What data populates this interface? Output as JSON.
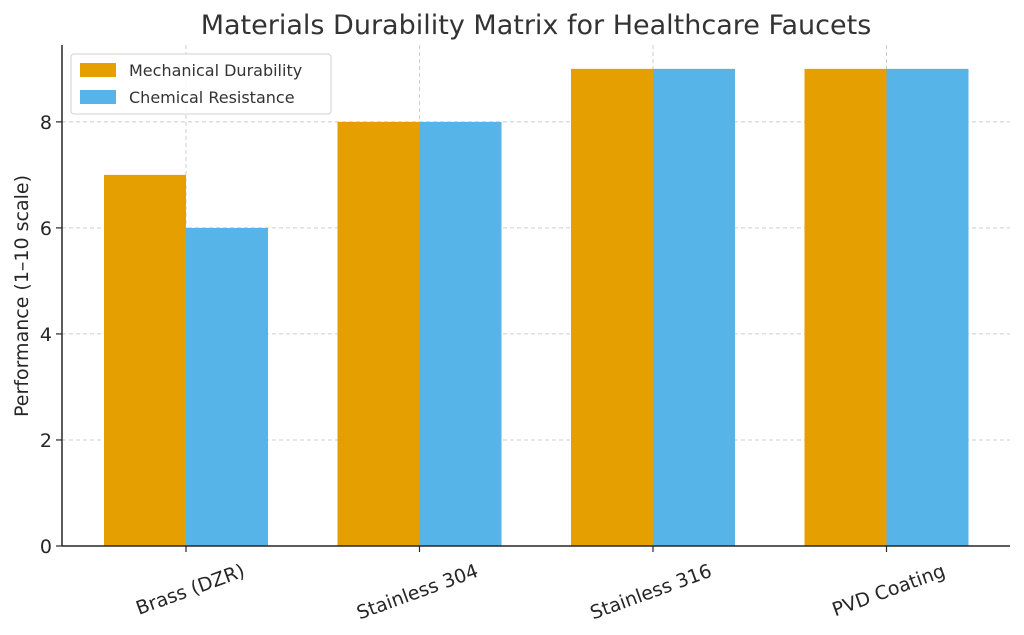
{
  "chart_data": {
    "type": "bar",
    "title": "Materials Durability Matrix for Healthcare Faucets",
    "xlabel": "",
    "ylabel": "Performance (1–10 scale)",
    "categories": [
      "Brass (DZR)",
      "Stainless 304",
      "Stainless 316",
      "PVD Coating"
    ],
    "series": [
      {
        "name": "Mechanical Durability",
        "values": [
          7,
          8,
          9,
          9
        ],
        "color": "#E69F00"
      },
      {
        "name": "Chemical Resistance",
        "values": [
          6,
          8,
          9,
          9
        ],
        "color": "#56B4E9"
      }
    ],
    "ylim": [
      0,
      9.45
    ],
    "yticks": [
      0,
      2,
      4,
      6,
      8
    ],
    "grid": true,
    "legend_position": "top-left"
  }
}
